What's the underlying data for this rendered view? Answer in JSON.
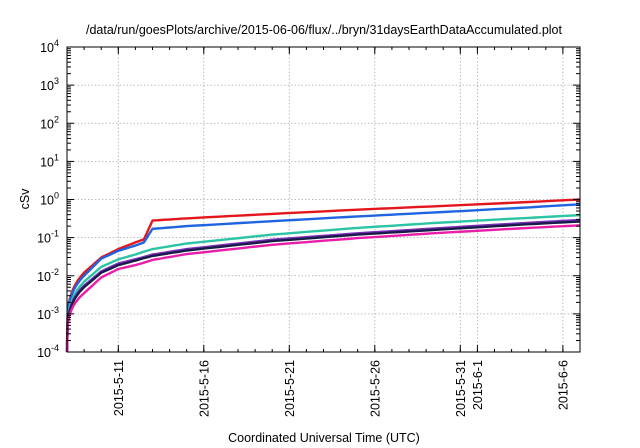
{
  "chart_data": {
    "type": "line",
    "title": "/data/run/goesPlots/archive/2015-06-06/flux/../bryn/31daysEarthDataAccumulated.plot",
    "xlabel": "Coordinated Universal Time (UTC)",
    "ylabel": "cSv",
    "y_scale": "log",
    "ylim": [
      0.0001,
      10000
    ],
    "xlim": [
      "2015-05-08",
      "2015-06-07"
    ],
    "grid": true,
    "y_ticks": [
      {
        "base": "10",
        "exp": "-4",
        "value": 0.0001
      },
      {
        "base": "10",
        "exp": "-3",
        "value": 0.001
      },
      {
        "base": "10",
        "exp": "-2",
        "value": 0.01
      },
      {
        "base": "10",
        "exp": "-1",
        "value": 0.1
      },
      {
        "base": "10",
        "exp": "0",
        "value": 1
      },
      {
        "base": "10",
        "exp": "1",
        "value": 10
      },
      {
        "base": "10",
        "exp": "2",
        "value": 100
      },
      {
        "base": "10",
        "exp": "3",
        "value": 1000
      },
      {
        "base": "10",
        "exp": "4",
        "value": 10000
      }
    ],
    "x_ticks": [
      {
        "label": "2015-5-11",
        "date": "2015-05-11"
      },
      {
        "label": "2015-5-16",
        "date": "2015-05-16"
      },
      {
        "label": "2015-5-21",
        "date": "2015-05-21"
      },
      {
        "label": "2015-5-26",
        "date": "2015-05-26"
      },
      {
        "label": "2015-5-31",
        "date": "2015-05-31"
      },
      {
        "label": "2015-6-1",
        "date": "2015-06-01"
      },
      {
        "label": "2015-6-6",
        "date": "2015-06-06"
      }
    ],
    "x": [
      "2015-05-08",
      "2015-05-09",
      "2015-05-10",
      "2015-05-11",
      "2015-05-12",
      "2015-05-12T12:00",
      "2015-05-13",
      "2015-05-15",
      "2015-05-20",
      "2015-05-25",
      "2015-05-30",
      "2015-06-04",
      "2015-06-07"
    ],
    "series": [
      {
        "color": "#e4161c",
        "values": [
          0.00015,
          0.012,
          0.03,
          0.05,
          0.075,
          0.09,
          0.28,
          0.32,
          0.42,
          0.54,
          0.68,
          0.86,
          1.0
        ]
      },
      {
        "color": "#1f64e0",
        "values": [
          0.00015,
          0.01,
          0.028,
          0.045,
          0.062,
          0.075,
          0.17,
          0.2,
          0.27,
          0.36,
          0.47,
          0.62,
          0.75
        ]
      },
      {
        "color": "#2bc4a4",
        "values": [
          0.0001,
          0.007,
          0.017,
          0.027,
          0.036,
          0.043,
          0.05,
          0.07,
          0.12,
          0.18,
          0.25,
          0.33,
          0.39
        ]
      },
      {
        "color": "#7a2fb8",
        "values": [
          0.0001,
          0.0055,
          0.013,
          0.021,
          0.027,
          0.031,
          0.036,
          0.05,
          0.088,
          0.13,
          0.18,
          0.245,
          0.29
        ]
      },
      {
        "color": "#1a1a4a",
        "values": [
          0.0001,
          0.005,
          0.012,
          0.019,
          0.025,
          0.029,
          0.033,
          0.046,
          0.081,
          0.12,
          0.165,
          0.225,
          0.265
        ]
      },
      {
        "color": "#e81ea8",
        "values": [
          0.0001,
          0.0035,
          0.009,
          0.015,
          0.019,
          0.022,
          0.026,
          0.037,
          0.065,
          0.097,
          0.135,
          0.18,
          0.21
        ]
      }
    ]
  }
}
